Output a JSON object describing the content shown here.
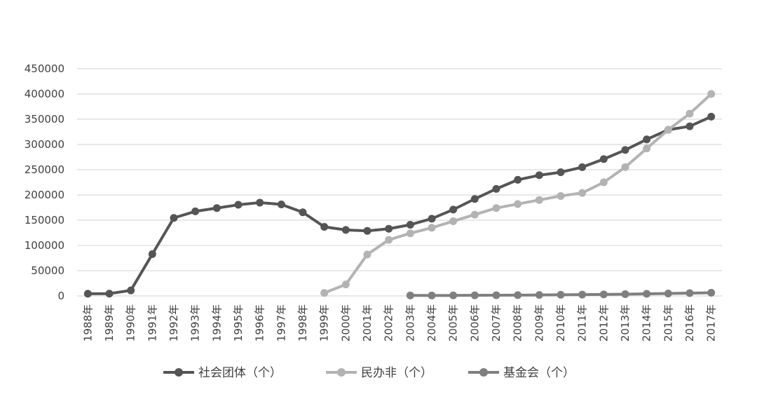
{
  "chart_data": {
    "type": "line",
    "title": "",
    "xlabel": "",
    "ylabel": "",
    "categories": [
      "1988年",
      "1989年",
      "1990年",
      "1991年",
      "1992年",
      "1993年",
      "1994年",
      "1995年",
      "1996年",
      "1997年",
      "1998年",
      "1999年",
      "2000年",
      "2001年",
      "2002年",
      "2003年",
      "2004年",
      "2005年",
      "2006年",
      "2007年",
      "2008年",
      "2009年",
      "2010年",
      "2011年",
      "2012年",
      "2013年",
      "2014年",
      "2015年",
      "2016年",
      "2017年"
    ],
    "ylim": [
      0,
      450000
    ],
    "yticks": [
      0,
      50000,
      100000,
      150000,
      200000,
      250000,
      300000,
      350000,
      400000,
      450000
    ],
    "ytick_labels": [
      "0",
      "50000",
      "100000",
      "150000",
      "200000",
      "250000",
      "300000",
      "350000",
      "400000",
      "450000"
    ],
    "grid": true,
    "legend": "bottom",
    "series": [
      {
        "name": "社会团体（个）",
        "color": "#555555",
        "values": [
          4400,
          4500,
          11000,
          82800,
          154500,
          167500,
          174000,
          180500,
          184800,
          181300,
          165600,
          136800,
          130700,
          128800,
          133000,
          141000,
          153000,
          171000,
          192000,
          212000,
          230000,
          239000,
          245000,
          255000,
          271000,
          289000,
          310000,
          329000,
          336000,
          355000
        ]
      },
      {
        "name": "民办非（个）",
        "color": "#b3b3b3",
        "values": [
          null,
          null,
          null,
          null,
          null,
          null,
          null,
          null,
          null,
          null,
          null,
          5900,
          22700,
          82000,
          111000,
          124000,
          135000,
          148000,
          161000,
          174000,
          182000,
          190000,
          198000,
          204000,
          225000,
          255000,
          292000,
          329000,
          361000,
          400000
        ]
      },
      {
        "name": "基金会（个）",
        "color": "#7f7f7f",
        "values": [
          null,
          null,
          null,
          null,
          null,
          null,
          null,
          null,
          null,
          null,
          null,
          null,
          null,
          null,
          null,
          954,
          892,
          975,
          1144,
          1340,
          1597,
          1843,
          2200,
          2614,
          3029,
          3549,
          4117,
          4784,
          5559,
          6307
        ]
      }
    ]
  }
}
